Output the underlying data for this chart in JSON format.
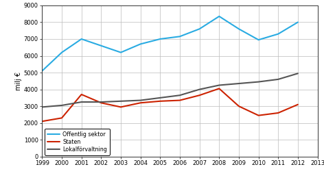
{
  "years": [
    1999,
    2000,
    2001,
    2002,
    2003,
    2004,
    2005,
    2006,
    2007,
    2008,
    2009,
    2010,
    2011,
    2012
  ],
  "offentlig_sektor": [
    5100,
    6200,
    7000,
    6600,
    6200,
    6700,
    7000,
    7150,
    7600,
    8350,
    7600,
    6950,
    7300,
    8000
  ],
  "staten": [
    2100,
    2300,
    3700,
    3200,
    2950,
    3200,
    3300,
    3350,
    3650,
    4050,
    3000,
    2450,
    2600,
    3100
  ],
  "lokalforvaltning": [
    2950,
    3050,
    3250,
    3250,
    3300,
    3350,
    3500,
    3650,
    4000,
    4250,
    4350,
    4450,
    4600,
    4950
  ],
  "offentlig_color": "#29ABE2",
  "staten_color": "#CC2200",
  "lokalforvaltning_color": "#555555",
  "ylabel": "milj €",
  "ylim": [
    0,
    9000
  ],
  "yticks": [
    0,
    1000,
    2000,
    3000,
    4000,
    5000,
    6000,
    7000,
    8000,
    9000
  ],
  "xlim": [
    1999,
    2013
  ],
  "xticks": [
    1999,
    2000,
    2001,
    2002,
    2003,
    2004,
    2005,
    2006,
    2007,
    2008,
    2009,
    2010,
    2011,
    2012,
    2013
  ],
  "legend_labels": [
    "Offentlig sektor",
    "Staten",
    "Lokalförvaltning"
  ],
  "background_color": "#FFFFFF",
  "grid_color": "#BBBBBB",
  "line_width": 1.5
}
